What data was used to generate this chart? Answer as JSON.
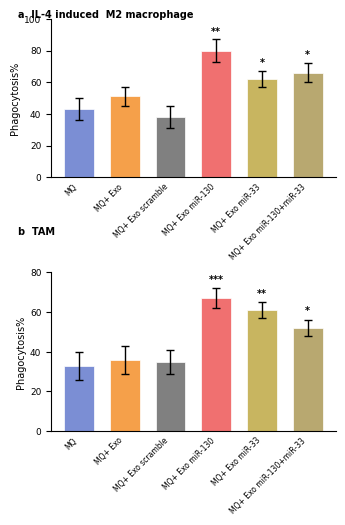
{
  "chart1": {
    "title": "a  IL-4 induced  M2 macrophage",
    "categories": [
      "MQ",
      "MQ+ Exo",
      "MQ+ Exo scramble",
      "MQ+ Exo miR-130",
      "MQ+ Exo miR-33",
      "MQ+ Exo miR-130+miR-33"
    ],
    "values": [
      43,
      51,
      38,
      80,
      62,
      66
    ],
    "errors": [
      7,
      6,
      7,
      7,
      5,
      6
    ],
    "colors": [
      "#7b8ed4",
      "#f5a04a",
      "#808080",
      "#f07070",
      "#c8b560",
      "#b8a870"
    ],
    "ylabel": "Phagocytosis%",
    "ylim": [
      0,
      100
    ],
    "yticks": [
      0,
      20,
      40,
      60,
      80,
      100
    ],
    "significance": [
      "",
      "",
      "",
      "**",
      "*",
      "*"
    ]
  },
  "chart2": {
    "title": "b  TAM",
    "categories": [
      "MQ",
      "MQ+ Exo",
      "MQ+ Exo scramble",
      "MQ+ Exo miR-130",
      "MQ+ Exo miR-33",
      "MQ+ Exo miR-130+miR-33"
    ],
    "values": [
      33,
      36,
      35,
      67,
      61,
      52
    ],
    "errors": [
      7,
      7,
      6,
      5,
      4,
      4
    ],
    "colors": [
      "#7b8ed4",
      "#f5a04a",
      "#808080",
      "#f07070",
      "#c8b560",
      "#b8a870"
    ],
    "ylabel": "Phagocytosis%",
    "ylim": [
      0,
      80
    ],
    "yticks": [
      0,
      20,
      40,
      60,
      80
    ],
    "significance": [
      "",
      "",
      "",
      "***",
      "**",
      "*"
    ]
  }
}
